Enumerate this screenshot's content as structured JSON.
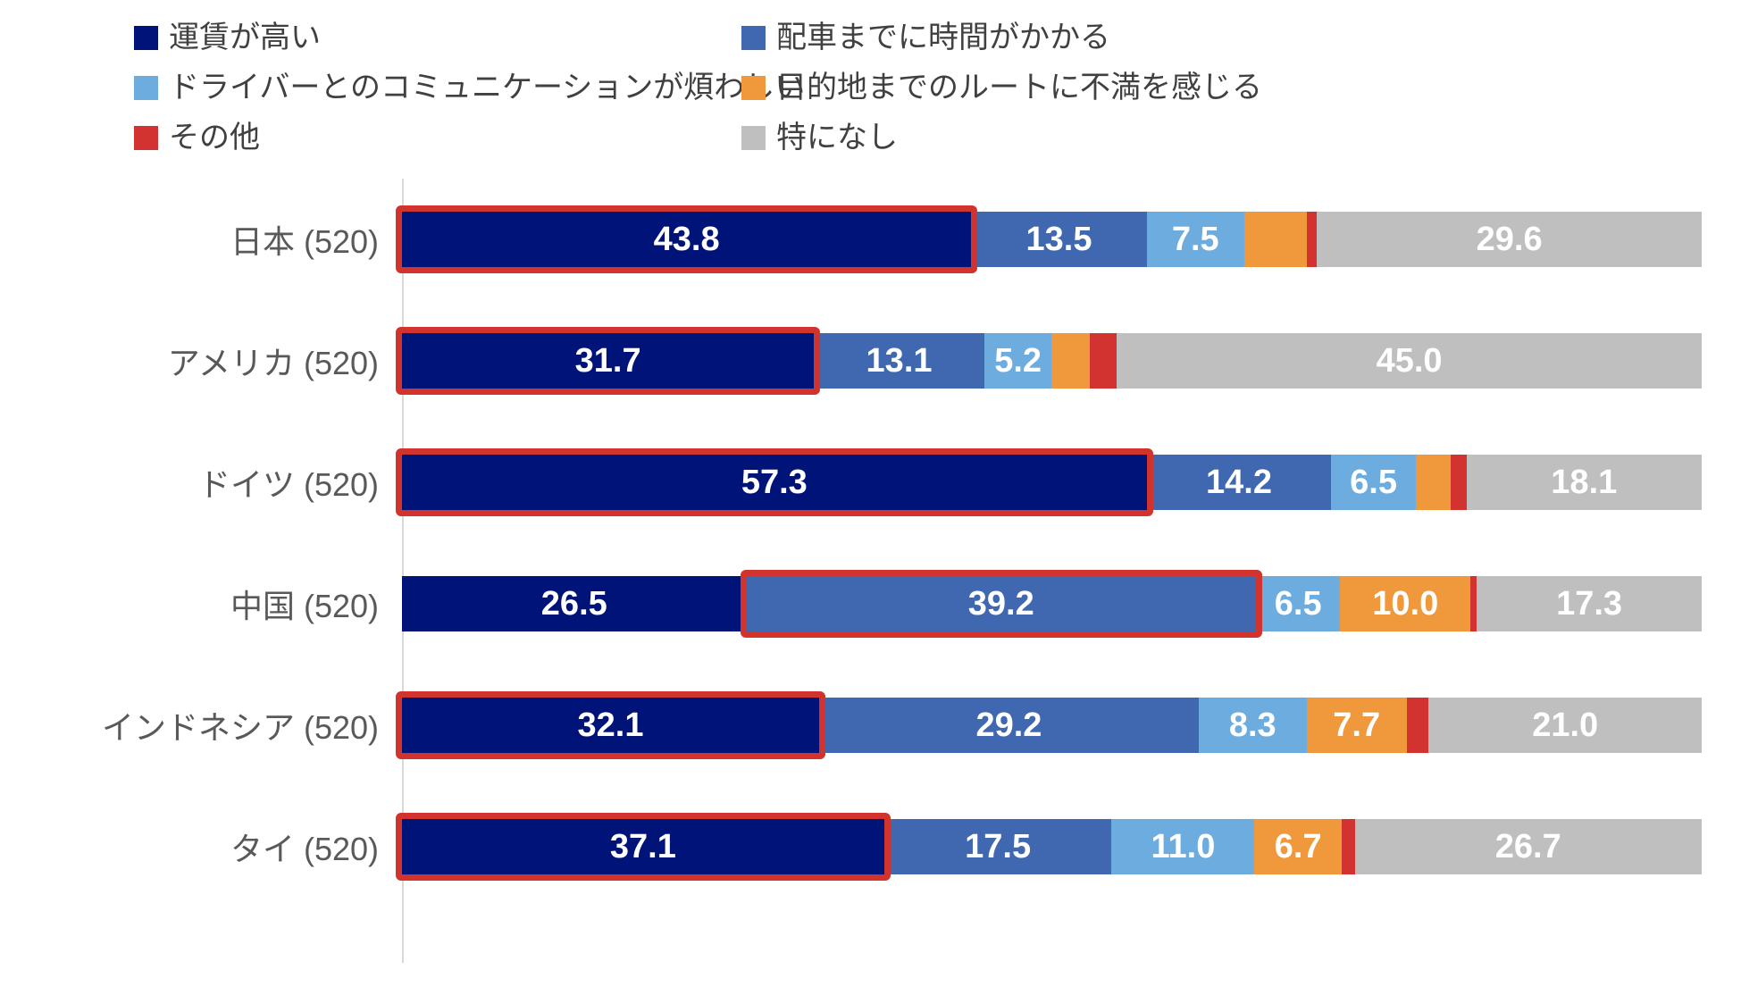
{
  "page": {
    "background": "#FFFFFF"
  },
  "chart_data": {
    "type": "bar",
    "stacked": true,
    "orientation": "horizontal",
    "value_unit": "%",
    "xlim": [
      0,
      100
    ],
    "grid": false,
    "legend_position": "top",
    "categories": [
      "日本 (520)",
      "アメリカ (520)",
      "ドイツ (520)",
      "中国 (520)",
      "インドネシア (520)",
      "タイ (520)"
    ],
    "series": [
      {
        "name": "運賃が高い",
        "color": "#001378",
        "values": [
          43.8,
          31.7,
          57.3,
          26.5,
          32.1,
          37.1
        ]
      },
      {
        "name": "配車までに時間がかかる",
        "color": "#4068B0",
        "values": [
          13.5,
          13.1,
          14.2,
          39.2,
          29.2,
          17.5
        ]
      },
      {
        "name": "ドライバーとのコミュニケーションが煩わしい",
        "color": "#6CACDF",
        "values": [
          7.5,
          5.2,
          6.5,
          6.5,
          8.3,
          11.0
        ]
      },
      {
        "name": "目的地までのルートに不満を感じる",
        "color": "#F0993C",
        "values": [
          4.8,
          2.9,
          2.7,
          10.0,
          7.7,
          6.7
        ]
      },
      {
        "name": "その他",
        "color": "#D23330",
        "values": [
          0.8,
          2.1,
          1.2,
          0.5,
          1.7,
          1.0
        ]
      },
      {
        "name": "特になし",
        "color": "#BFBFBF",
        "values": [
          29.6,
          45.0,
          18.1,
          17.3,
          21.0,
          26.7
        ]
      }
    ],
    "value_labels_shown_min": 5,
    "value_label_color": "#FFFFFF",
    "category_label_color": "#595959",
    "axis_line_color": "#D9D9D9",
    "highlight_color": "#D0342C",
    "highlights": [
      {
        "category": 0,
        "series": 0
      },
      {
        "category": 1,
        "series": 0
      },
      {
        "category": 2,
        "series": 0
      },
      {
        "category": 3,
        "series": 1
      },
      {
        "category": 4,
        "series": 0
      },
      {
        "category": 5,
        "series": 0
      }
    ],
    "legend_columns": [
      [
        0,
        2,
        4
      ],
      [
        1,
        3,
        5
      ]
    ]
  }
}
